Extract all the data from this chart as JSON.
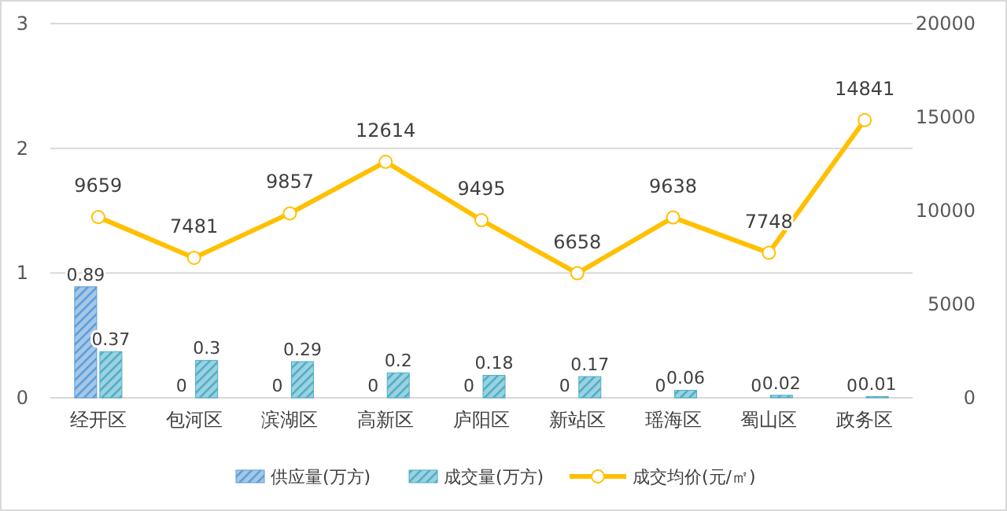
{
  "chart_data": {
    "type": "bar",
    "categories": [
      "经开区",
      "包河区",
      "滨湖区",
      "高新区",
      "庐阳区",
      "新站区",
      "瑶海区",
      "蜀山区",
      "政务区"
    ],
    "series": [
      {
        "name": "供应量(万方)",
        "color": "#5b9bd5",
        "values": [
          0.89,
          0,
          0,
          0,
          0,
          0,
          0,
          0,
          0
        ]
      },
      {
        "name": "成交量(万方)",
        "color": "#4bacc6",
        "values": [
          0.37,
          0.3,
          0.29,
          0.2,
          0.18,
          0.17,
          0.06,
          0.02,
          0.01
        ]
      },
      {
        "name": "成交均价(元/㎡)",
        "type": "line",
        "axis": "y2",
        "color": "#ffc000",
        "marker": "circle",
        "values": [
          9659,
          7481,
          9857,
          12614,
          9495,
          6658,
          9638,
          7748,
          14841
        ]
      }
    ],
    "ylim": [
      0,
      3
    ],
    "yticks": [
      0,
      1,
      2,
      3
    ],
    "y2lim": [
      0,
      20000
    ],
    "y2ticks": [
      0,
      5000,
      10000,
      15000,
      20000
    ],
    "grid": "y",
    "legend": "bottom",
    "data_labels": true
  }
}
